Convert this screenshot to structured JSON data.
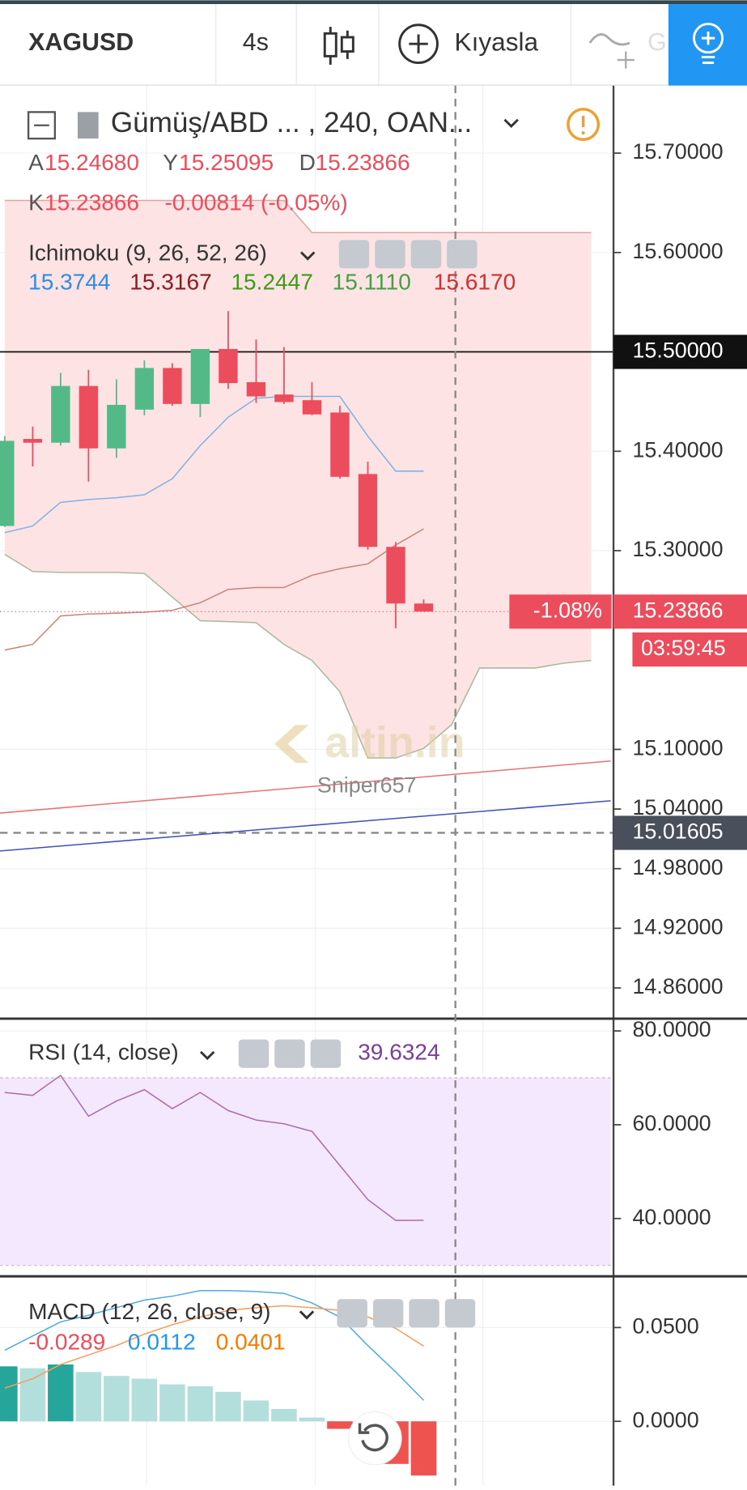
{
  "toolbar": {
    "symbol": "XAGUSD",
    "interval": "4s",
    "compare": "Kıyasla",
    "indicator_hint": "G"
  },
  "watermark": {
    "brand": "altin.in",
    "author": "Sniper657"
  },
  "chart_data": [
    {
      "type": "candlestick",
      "legend": {
        "title": "Gümüş/ABD ... , 240, OAN...",
        "ohlc": [
          {
            "label": "A",
            "value": "15.24680"
          },
          {
            "label": "Y",
            "value": "15.25095"
          },
          {
            "label": "D",
            "value": "15.23866"
          },
          {
            "label": "K",
            "value": "15.23866"
          }
        ],
        "change": "-0.00814 (-0.05%)",
        "indicator": "Ichimoku (9, 26, 52, 26)",
        "indicator_values": [
          {
            "text": "15.3744",
            "color": "#2f8de4"
          },
          {
            "text": "15.3167",
            "color": "#8c1c24"
          },
          {
            "text": "15.2447",
            "color": "#3f9a1c"
          },
          {
            "text": "15.1110",
            "color": "#43a047"
          },
          {
            "text": "15.6170",
            "color": "#d32f2f"
          }
        ]
      },
      "ylim": [
        14.831,
        15.768
      ],
      "yticks": [
        {
          "value": 15.7,
          "label": "15.70000"
        },
        {
          "value": 15.6,
          "label": "15.60000"
        },
        {
          "value": 15.4,
          "label": "15.40000"
        },
        {
          "value": 15.3,
          "label": "15.30000"
        },
        {
          "value": 15.1,
          "label": "15.10000"
        },
        {
          "value": 15.04,
          "label": "15.04000"
        },
        {
          "value": 14.98,
          "label": "14.98000"
        },
        {
          "value": 14.92,
          "label": "14.92000"
        },
        {
          "value": 14.86,
          "label": "14.86000"
        }
      ],
      "grid": true,
      "up_color": "#53b987",
      "down_color": "#eb4d5c",
      "open": [
        15.3248,
        15.4124,
        15.4086,
        15.4657,
        15.4029,
        15.4419,
        15.4838,
        15.4476,
        15.5029,
        15.4695,
        15.4571,
        15.4514,
        15.439,
        15.3771,
        15.3038,
        15.2468
      ],
      "high": [
        15.4152,
        15.4248,
        15.479,
        15.4819,
        15.4724,
        15.4914,
        15.4886,
        15.5029,
        15.541,
        15.5124,
        15.5048,
        15.4695,
        15.4457,
        15.3895,
        15.3086,
        15.25095
      ],
      "low": [
        15.3238,
        15.3848,
        15.4057,
        15.3695,
        15.3933,
        15.4362,
        15.4457,
        15.4343,
        15.4629,
        15.4486,
        15.4476,
        15.4362,
        15.3724,
        15.301,
        15.2219,
        15.23866
      ],
      "close": [
        15.4105,
        15.4086,
        15.4657,
        15.4029,
        15.4467,
        15.4838,
        15.4476,
        15.5029,
        15.4686,
        15.4552,
        15.4495,
        15.4371,
        15.3743,
        15.3038,
        15.2468,
        15.23866
      ],
      "overlays": [
        {
          "color": "#7fb2e5",
          "values": [
            15.3181,
            15.3248,
            15.3486,
            15.3514,
            15.3533,
            15.3562,
            15.3724,
            15.4057,
            15.4343,
            15.4533,
            15.4552,
            15.4552,
            15.4552,
            15.4152,
            15.38,
            15.38
          ]
        },
        {
          "color": "#c9827a",
          "values": [
            15.2,
            15.2057,
            15.2343,
            15.2362,
            15.2371,
            15.2381,
            15.24,
            15.2476,
            15.261,
            15.2629,
            15.2629,
            15.2752,
            15.2819,
            15.2867,
            15.3057,
            15.3219
          ]
        }
      ],
      "cloud": {
        "color": "#fde3e3",
        "upper_color": "#e3a3a3",
        "lower_color": "#a9b99a",
        "upper": [
          15.6524,
          15.6524,
          15.6524,
          15.6524,
          15.6524,
          15.6524,
          15.6524,
          15.6524,
          15.6524,
          15.6524,
          15.6524,
          15.62,
          15.62,
          15.62,
          15.62,
          15.62,
          15.62,
          15.62,
          15.62,
          15.62,
          15.62,
          15.62
        ],
        "lower": [
          15.2962,
          15.279,
          15.2781,
          15.2781,
          15.2781,
          15.2771,
          15.2533,
          15.2295,
          15.2286,
          15.2276,
          15.2057,
          15.1895,
          15.1581,
          15.0914,
          15.0914,
          15.101,
          15.1248,
          15.1819,
          15.1819,
          15.1819,
          15.1867,
          15.1895
        ]
      },
      "hline": {
        "value": 15.5,
        "label": "15.50000"
      },
      "last": {
        "value": 15.23866,
        "label": "15.23866",
        "change": "-1.08%",
        "countdown": "03:59:45"
      },
      "crosshair": {
        "value": 15.01605,
        "label": "15.01605"
      }
    },
    {
      "type": "line",
      "legend": {
        "title": "RSI (14, close)",
        "value": "39.6324"
      },
      "ylim": [
        28.08,
        82.42
      ],
      "yticks": [
        {
          "value": 80,
          "label": "80.0000"
        },
        {
          "value": 60,
          "label": "60.0000"
        },
        {
          "value": 40,
          "label": "40.0000"
        }
      ],
      "color": "#b06bb0",
      "band": [
        30,
        70
      ],
      "band_color": "#f3e8fd",
      "values": [
        66.87,
        66.26,
        70.51,
        61.82,
        65.05,
        67.47,
        63.43,
        66.87,
        63.03,
        61.01,
        60.2,
        58.59,
        51.31,
        44.04,
        39.6,
        39.6324
      ]
    },
    {
      "type": "bar",
      "legend": {
        "title": "MACD (12, 26, close, 9)",
        "values": [
          {
            "text": "-0.0289",
            "color": "#eb4d5c"
          },
          {
            "text": "0.0112",
            "color": "#2196f3"
          },
          {
            "text": "0.0401",
            "color": "#f57c00"
          }
        ]
      },
      "ylim": [
        -0.0343,
        0.0768
      ],
      "yticks": [
        {
          "value": 0.05,
          "label": "0.0500"
        },
        {
          "value": 0,
          "label": "0.0000"
        }
      ],
      "values": [
        0.0293,
        0.0283,
        0.0303,
        0.0263,
        0.0242,
        0.0227,
        0.0197,
        0.0187,
        0.0157,
        0.0111,
        0.0066,
        0.002,
        -0.004,
        -0.0101,
        -0.0227,
        -0.0289
      ],
      "colors": [
        "#26a69a",
        "#b2dfdb",
        "#26a69a",
        "#b2dfdb",
        "#b2dfdb",
        "#b2dfdb",
        "#b2dfdb",
        "#b2dfdb",
        "#b2dfdb",
        "#b2dfdb",
        "#b2dfdb",
        "#b2dfdb",
        "#ef5350",
        "#ef5350",
        "#ef5350",
        "#ef5350"
      ],
      "lines": [
        {
          "color": "#4fa9e3",
          "values": [
            0.0379,
            0.0455,
            0.053,
            0.0566,
            0.0606,
            0.0646,
            0.0667,
            0.0697,
            0.0697,
            0.0692,
            0.0682,
            0.0631,
            0.0556,
            0.0404,
            0.0263,
            0.0112
          ]
        },
        {
          "color": "#f0a060",
          "values": [
            0.0177,
            0.0227,
            0.0303,
            0.0354,
            0.0404,
            0.0465,
            0.0515,
            0.0556,
            0.0591,
            0.0606,
            0.0616,
            0.0606,
            0.0591,
            0.0556,
            0.0495,
            0.0401
          ]
        }
      ]
    }
  ]
}
